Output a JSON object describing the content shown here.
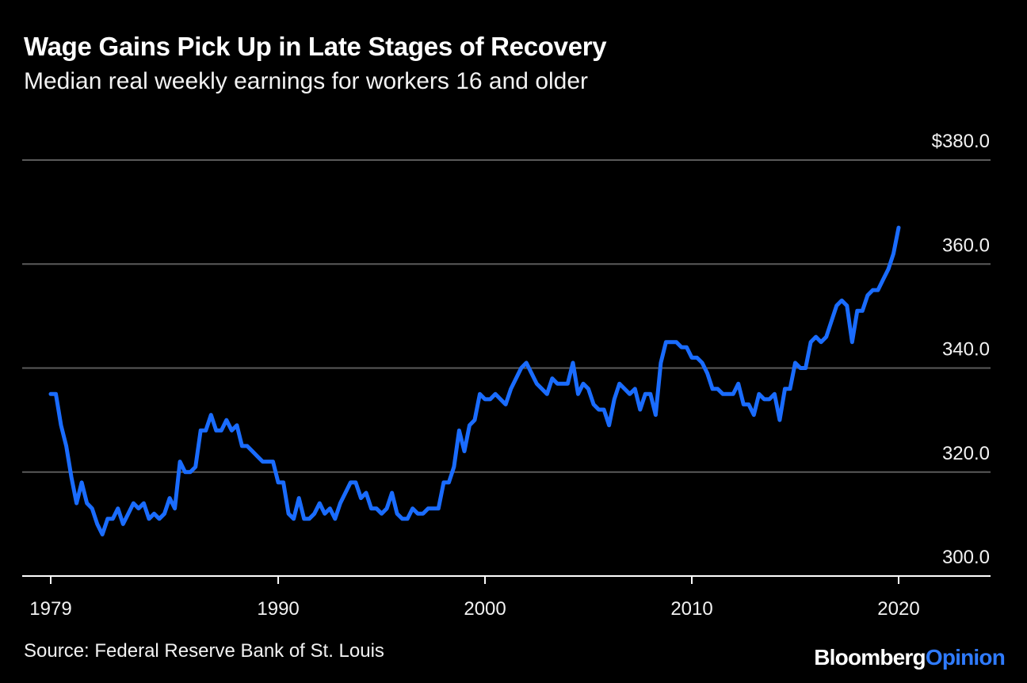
{
  "header": {
    "title": "Wage Gains Pick Up in Late Stages of Recovery",
    "subtitle": "Median real weekly earnings for workers 16 and older"
  },
  "footer": {
    "source": "Source: Federal Reserve Bank of St. Louis",
    "brand_part1": "Bloomberg",
    "brand_part2": "Opinion"
  },
  "colors": {
    "background": "#000000",
    "line": "#1a6cff",
    "grid": "#5a5a5a",
    "text": "#f2f2f2",
    "brand_accent": "#2f7bff"
  },
  "chart_data": {
    "type": "line",
    "title": "Wage Gains Pick Up in Late Stages of Recovery",
    "subtitle": "Median real weekly earnings for workers 16 and older",
    "xlabel": "",
    "ylabel": "",
    "xlim": [
      1979,
      2023.5
    ],
    "ylim": [
      300,
      380
    ],
    "y_ticks": [
      300,
      320,
      340,
      360,
      380
    ],
    "y_tick_labels": [
      "300.0",
      "320.0",
      "340.0",
      "360.0",
      "$380.0"
    ],
    "x_ticks": [
      1979,
      1990,
      2000,
      2010,
      2020
    ],
    "x_tick_labels": [
      "1979",
      "1990",
      "2000",
      "2010",
      "2020"
    ],
    "grid": "horizontal",
    "axis_position": "right",
    "series": [
      {
        "values": [
          [
            1979.0,
            335
          ],
          [
            1979.25,
            335
          ],
          [
            1979.5,
            329
          ],
          [
            1979.75,
            325
          ],
          [
            1980.0,
            319
          ],
          [
            1980.25,
            314
          ],
          [
            1980.5,
            318
          ],
          [
            1980.75,
            314
          ],
          [
            1981.0,
            313
          ],
          [
            1981.25,
            310
          ],
          [
            1981.5,
            308
          ],
          [
            1981.75,
            311
          ],
          [
            1982.0,
            311
          ],
          [
            1982.25,
            313
          ],
          [
            1982.5,
            310
          ],
          [
            1982.75,
            312
          ],
          [
            1983.0,
            314
          ],
          [
            1983.25,
            313
          ],
          [
            1983.5,
            314
          ],
          [
            1983.75,
            311
          ],
          [
            1984.0,
            312
          ],
          [
            1984.25,
            311
          ],
          [
            1984.5,
            312
          ],
          [
            1984.75,
            315
          ],
          [
            1985.0,
            313
          ],
          [
            1985.25,
            322
          ],
          [
            1985.5,
            320
          ],
          [
            1985.75,
            320
          ],
          [
            1986.0,
            321
          ],
          [
            1986.25,
            328
          ],
          [
            1986.5,
            328
          ],
          [
            1986.75,
            331
          ],
          [
            1987.0,
            328
          ],
          [
            1987.25,
            328
          ],
          [
            1987.5,
            330
          ],
          [
            1987.75,
            328
          ],
          [
            1988.0,
            329
          ],
          [
            1988.25,
            325
          ],
          [
            1988.5,
            325
          ],
          [
            1988.75,
            324
          ],
          [
            1989.0,
            323
          ],
          [
            1989.25,
            322
          ],
          [
            1989.5,
            322
          ],
          [
            1989.75,
            322
          ],
          [
            1990.0,
            318
          ],
          [
            1990.25,
            318
          ],
          [
            1990.5,
            312
          ],
          [
            1990.75,
            311
          ],
          [
            1991.0,
            315
          ],
          [
            1991.25,
            311
          ],
          [
            1991.5,
            311
          ],
          [
            1991.75,
            312
          ],
          [
            1992.0,
            314
          ],
          [
            1992.25,
            312
          ],
          [
            1992.5,
            313
          ],
          [
            1992.75,
            311
          ],
          [
            1993.0,
            314
          ],
          [
            1993.25,
            316
          ],
          [
            1993.5,
            318
          ],
          [
            1993.75,
            318
          ],
          [
            1994.0,
            315
          ],
          [
            1994.25,
            316
          ],
          [
            1994.5,
            313
          ],
          [
            1994.75,
            313
          ],
          [
            1995.0,
            312
          ],
          [
            1995.25,
            313
          ],
          [
            1995.5,
            316
          ],
          [
            1995.75,
            312
          ],
          [
            1996.0,
            311
          ],
          [
            1996.25,
            311
          ],
          [
            1996.5,
            313
          ],
          [
            1996.75,
            312
          ],
          [
            1997.0,
            312
          ],
          [
            1997.25,
            313
          ],
          [
            1997.5,
            313
          ],
          [
            1997.75,
            313
          ],
          [
            1998.0,
            318
          ],
          [
            1998.25,
            318
          ],
          [
            1998.5,
            321
          ],
          [
            1998.75,
            328
          ],
          [
            1999.0,
            324
          ],
          [
            1999.25,
            329
          ],
          [
            1999.5,
            330
          ],
          [
            1999.75,
            335
          ],
          [
            2000.0,
            334
          ],
          [
            2000.25,
            334
          ],
          [
            2000.5,
            335
          ],
          [
            2000.75,
            334
          ],
          [
            2001.0,
            333
          ],
          [
            2001.25,
            336
          ],
          [
            2001.5,
            338
          ],
          [
            2001.75,
            340
          ],
          [
            2002.0,
            341
          ],
          [
            2002.25,
            339
          ],
          [
            2002.5,
            337
          ],
          [
            2002.75,
            336
          ],
          [
            2003.0,
            335
          ],
          [
            2003.25,
            338
          ],
          [
            2003.5,
            337
          ],
          [
            2003.75,
            337
          ],
          [
            2004.0,
            337
          ],
          [
            2004.25,
            341
          ],
          [
            2004.5,
            335
          ],
          [
            2004.75,
            337
          ],
          [
            2005.0,
            336
          ],
          [
            2005.25,
            333
          ],
          [
            2005.5,
            332
          ],
          [
            2005.75,
            332
          ],
          [
            2006.0,
            329
          ],
          [
            2006.25,
            334
          ],
          [
            2006.5,
            337
          ],
          [
            2006.75,
            336
          ],
          [
            2007.0,
            335
          ],
          [
            2007.25,
            336
          ],
          [
            2007.5,
            332
          ],
          [
            2007.75,
            335
          ],
          [
            2008.0,
            335
          ],
          [
            2008.25,
            331
          ],
          [
            2008.5,
            341
          ],
          [
            2008.75,
            345
          ],
          [
            2009.0,
            345
          ],
          [
            2009.25,
            345
          ],
          [
            2009.5,
            344
          ],
          [
            2009.75,
            344
          ],
          [
            2010.0,
            342
          ],
          [
            2010.25,
            342
          ],
          [
            2010.5,
            341
          ],
          [
            2010.75,
            339
          ],
          [
            2011.0,
            336
          ],
          [
            2011.25,
            336
          ],
          [
            2011.5,
            335
          ],
          [
            2011.75,
            335
          ],
          [
            2012.0,
            335
          ],
          [
            2012.25,
            337
          ],
          [
            2012.5,
            333
          ],
          [
            2012.75,
            333
          ],
          [
            2013.0,
            331
          ],
          [
            2013.25,
            335
          ],
          [
            2013.5,
            334
          ],
          [
            2013.75,
            334
          ],
          [
            2014.0,
            335
          ],
          [
            2014.25,
            330
          ],
          [
            2014.5,
            336
          ],
          [
            2014.75,
            336
          ],
          [
            2015.0,
            341
          ],
          [
            2015.25,
            340
          ],
          [
            2015.5,
            340
          ],
          [
            2015.75,
            345
          ],
          [
            2016.0,
            346
          ],
          [
            2016.25,
            345
          ],
          [
            2016.5,
            346
          ],
          [
            2016.75,
            349
          ],
          [
            2017.0,
            352
          ],
          [
            2017.25,
            353
          ],
          [
            2017.5,
            352
          ],
          [
            2017.75,
            345
          ],
          [
            2018.0,
            351
          ],
          [
            2018.25,
            351
          ],
          [
            2018.5,
            354
          ],
          [
            2018.75,
            355
          ],
          [
            2019.0,
            355
          ],
          [
            2019.25,
            357
          ],
          [
            2019.5,
            359
          ],
          [
            2019.75,
            362
          ],
          [
            2020.0,
            367
          ]
        ]
      }
    ]
  }
}
